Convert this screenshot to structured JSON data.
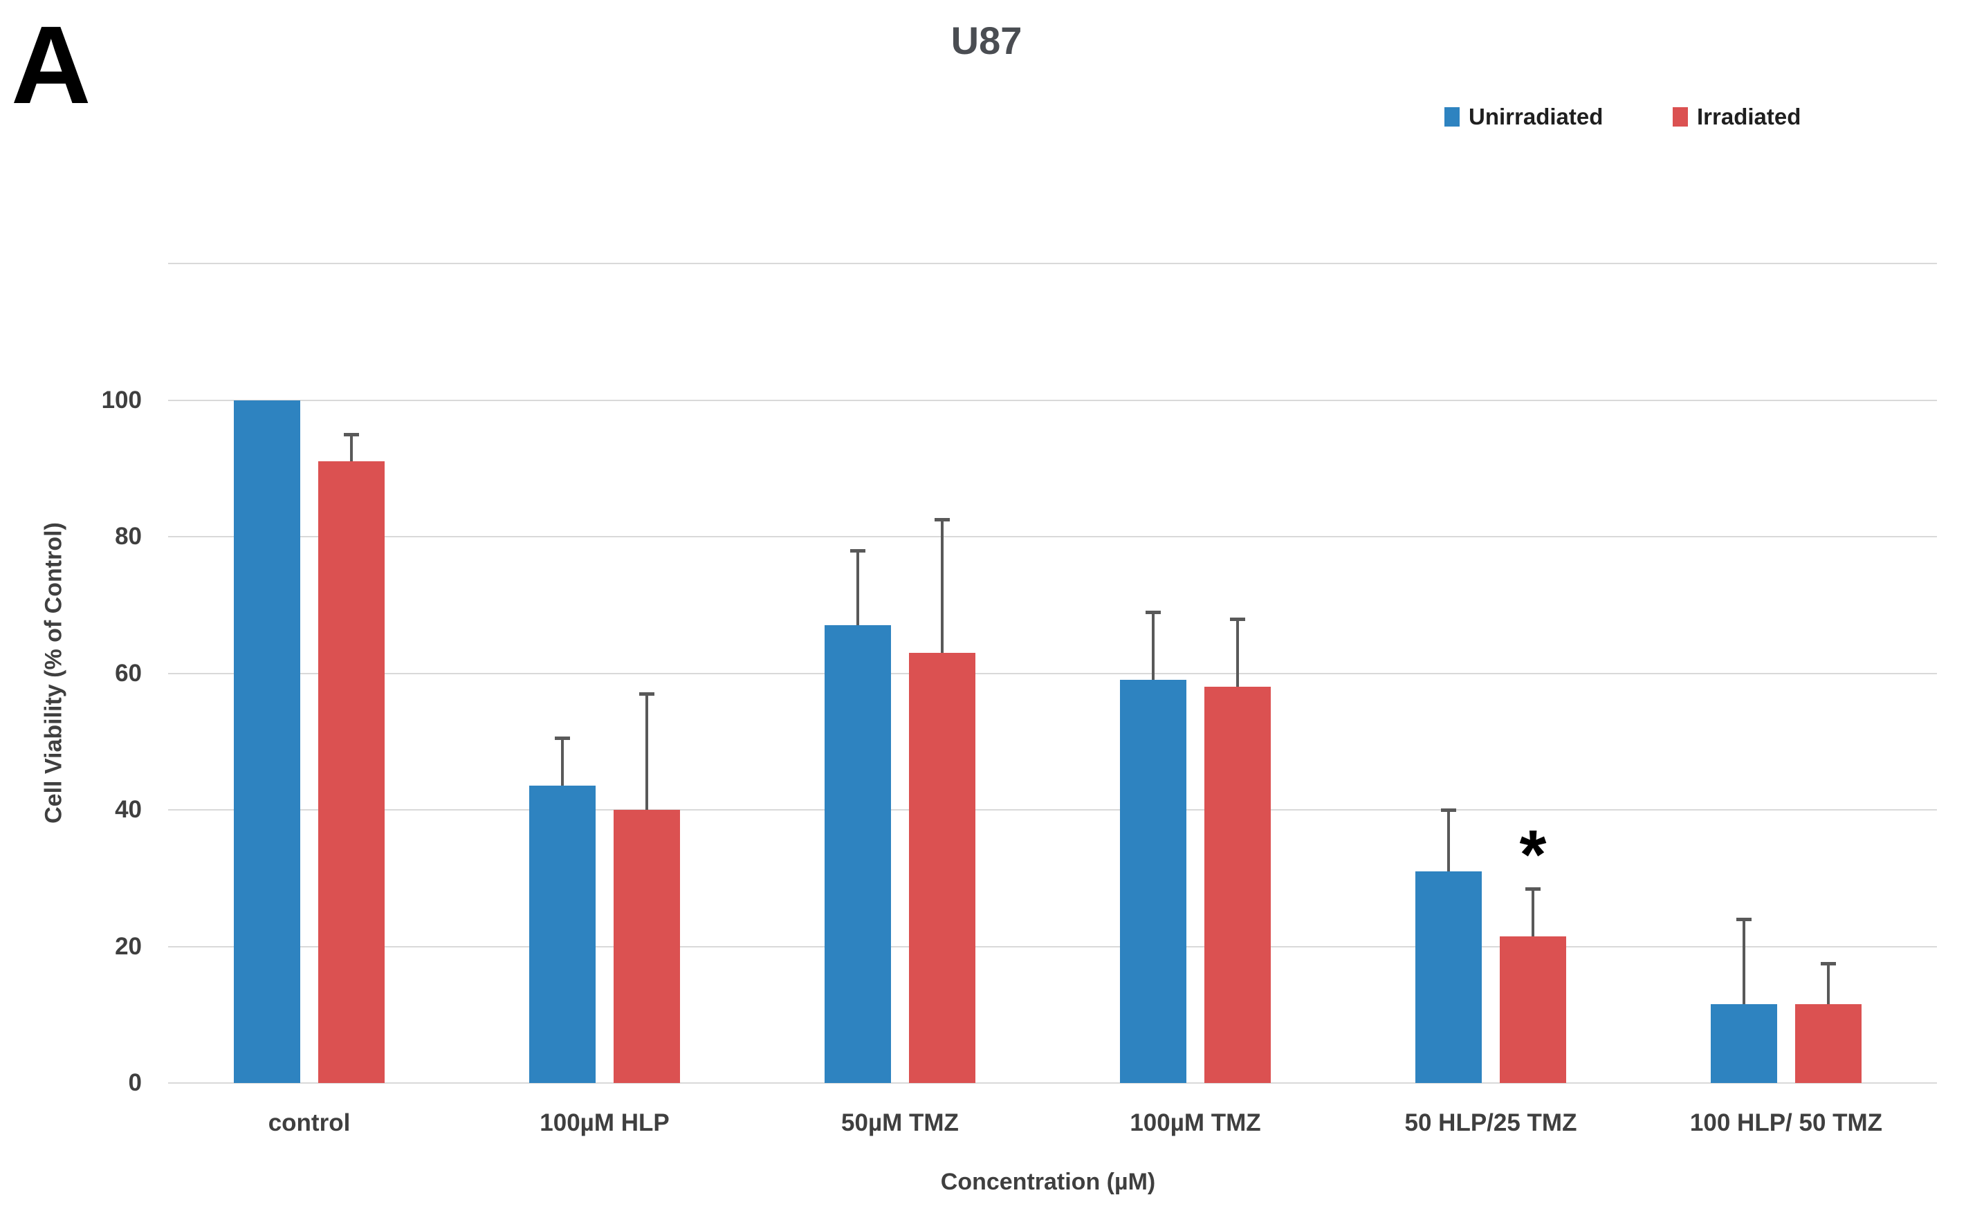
{
  "panel_label": "A",
  "chart_data": {
    "type": "bar",
    "title": "U87",
    "xlabel": "Concentration (µM)",
    "ylabel": "Cell Viability (% of Control)",
    "categories": [
      "control",
      "100µM HLP",
      "50µM TMZ",
      "100µM TMZ",
      "50 HLP/25 TMZ",
      "100 HLP/ 50 TMZ"
    ],
    "series": [
      {
        "name": "Unirradiated",
        "color": "#2E83C0",
        "values": [
          100,
          43.5,
          67,
          59,
          31,
          11.5
        ],
        "errors_up": [
          null,
          7,
          11,
          10,
          9,
          12.5
        ]
      },
      {
        "name": "Irradiated",
        "color": "#DB5151",
        "values": [
          91,
          40,
          63,
          58,
          21.5,
          11.5
        ],
        "errors_up": [
          4,
          17,
          19.5,
          10,
          7,
          6
        ]
      }
    ],
    "ylim": [
      0,
      120
    ],
    "ytick_step": 20,
    "ytick_label_max": 100,
    "grid": true,
    "legend_position": "top-right",
    "annotations": [
      {
        "text": "*",
        "category_index": 4,
        "series_index": 1
      }
    ]
  },
  "style": {
    "gridline_color": "#D9D9D9",
    "error_bar_color": "#595959",
    "text_color": "#3F3F3F",
    "background": "#FFFFFF"
  }
}
